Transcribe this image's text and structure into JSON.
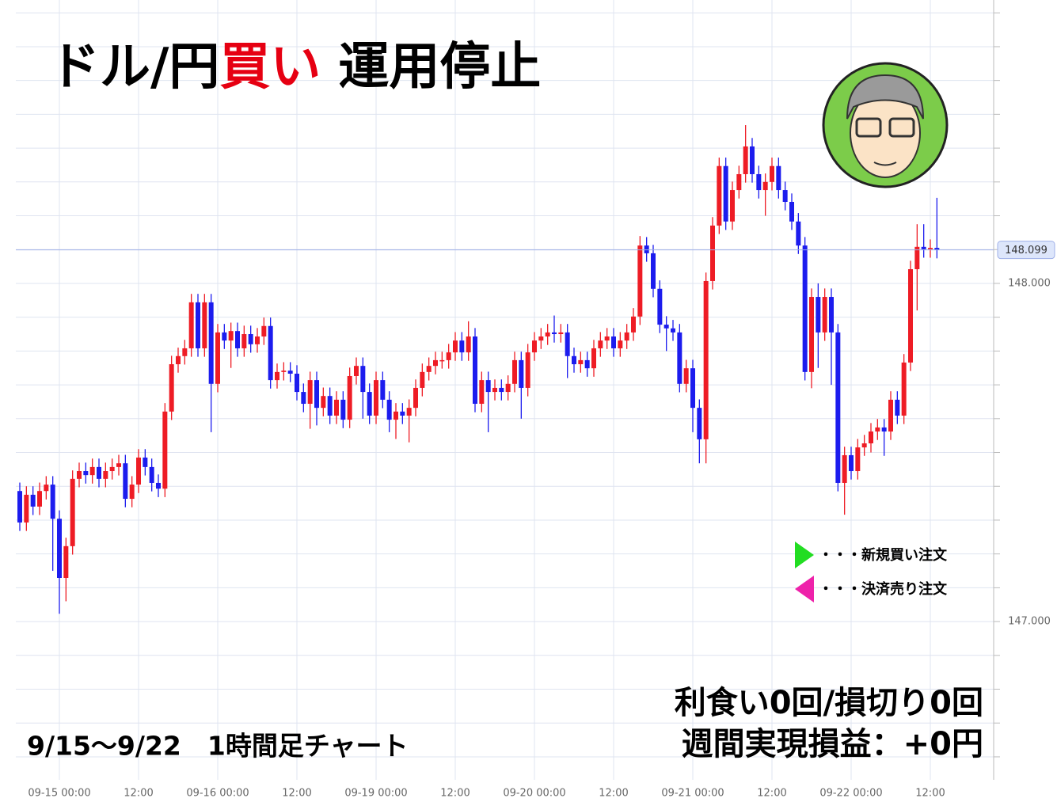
{
  "chart_data": {
    "type": "candlestick",
    "title_parts": [
      "ドル/円",
      "買い",
      "運用停止"
    ],
    "title_colors": [
      "#000000",
      "#e60012",
      "#000000"
    ],
    "subtitle": "9/15～9/22　1時間足チャート",
    "result_lines": [
      "利食い0回/損切り0回",
      "週間実現損益：+0円"
    ],
    "legend": [
      {
        "name": "・・・新規買い注文",
        "color": "#22dd22"
      },
      {
        "name": "・・・決済売り注文",
        "color": "#ee22aa"
      }
    ],
    "up_color": "#ee1c25",
    "down_color": "#1c1cee",
    "categories": [
      null,
      null,
      null,
      null,
      null,
      null,
      "09-15 00:00",
      null,
      null,
      null,
      null,
      null,
      null,
      null,
      null,
      null,
      null,
      null,
      "12:00",
      null,
      null,
      null,
      null,
      null,
      null,
      null,
      null,
      null,
      null,
      null,
      "09-16 00:00",
      null,
      null,
      null,
      null,
      null,
      null,
      null,
      null,
      null,
      null,
      null,
      "12:00",
      null,
      null,
      null,
      null,
      null,
      null,
      null,
      null,
      null,
      null,
      null,
      "09-19 00:00",
      null,
      null,
      null,
      null,
      null,
      null,
      null,
      null,
      null,
      null,
      null,
      "12:00",
      null,
      null,
      null,
      null,
      null,
      null,
      null,
      null,
      null,
      null,
      null,
      "09-20 00:00",
      null,
      null,
      null,
      null,
      null,
      null,
      null,
      null,
      null,
      null,
      null,
      "12:00",
      null,
      null,
      null,
      null,
      null,
      null,
      null,
      null,
      null,
      null,
      null,
      "09-21 00:00",
      null,
      null,
      null,
      null,
      null,
      null,
      null,
      null,
      null,
      null,
      null,
      "12:00",
      null,
      null,
      null,
      null,
      null,
      null,
      null,
      null,
      null,
      null,
      null,
      "09-22 00:00",
      null,
      null,
      null,
      null,
      null,
      null,
      null,
      null,
      null,
      null,
      null,
      "12:00",
      null
    ],
    "open": [
      147.386,
      147.293,
      147.375,
      147.34,
      147.386,
      147.405,
      147.304,
      147.129,
      147.223,
      147.422,
      147.445,
      147.433,
      147.457,
      147.422,
      147.445,
      147.457,
      147.468,
      147.363,
      147.405,
      147.485,
      147.457,
      147.41,
      147.393,
      147.621,
      147.761,
      147.785,
      147.808,
      147.944,
      147.808,
      147.944,
      147.703,
      147.855,
      147.831,
      147.859,
      147.808,
      147.85,
      147.82,
      147.843,
      147.874,
      147.714,
      147.738,
      147.742,
      147.733,
      147.679,
      147.644,
      147.714,
      147.632,
      147.667,
      147.609,
      147.656,
      147.597,
      147.726,
      147.756,
      147.679,
      147.609,
      147.714,
      147.656,
      147.597,
      147.621,
      147.609,
      147.632,
      147.691,
      147.738,
      147.756,
      147.773,
      147.773,
      147.796,
      147.831,
      147.796,
      147.843,
      147.644,
      147.714,
      147.679,
      147.691,
      147.679,
      147.703,
      147.773,
      147.691,
      147.796,
      147.831,
      147.843,
      147.855,
      147.85,
      147.855,
      147.785,
      147.761,
      147.773,
      147.749,
      147.808,
      147.831,
      147.843,
      147.808,
      147.831,
      147.855,
      147.902,
      148.112,
      148.089,
      147.984,
      147.878,
      147.867,
      147.855,
      147.703,
      147.749,
      147.632,
      147.539,
      148.007,
      148.171,
      148.347,
      148.183,
      148.276,
      148.323,
      148.405,
      148.323,
      148.276,
      148.3,
      148.347,
      148.276,
      148.241,
      148.183,
      148.112,
      147.738,
      147.96,
      147.855,
      147.96,
      147.855,
      147.41,
      147.492,
      147.445,
      147.515,
      147.527,
      147.562,
      147.574,
      147.562,
      147.656,
      147.609,
      147.766,
      148.042,
      148.108,
      148.101,
      148.105
    ],
    "high": [
      147.411,
      147.4,
      147.4,
      147.411,
      147.43,
      147.43,
      147.329,
      147.248,
      147.447,
      147.47,
      147.47,
      147.482,
      147.482,
      147.47,
      147.482,
      147.493,
      147.493,
      147.43,
      147.51,
      147.51,
      147.482,
      147.435,
      147.646,
      147.786,
      147.81,
      147.833,
      147.969,
      147.969,
      147.969,
      147.969,
      147.88,
      147.88,
      147.884,
      147.884,
      147.875,
      147.875,
      147.868,
      147.899,
      147.899,
      147.763,
      147.767,
      147.767,
      147.758,
      147.704,
      147.739,
      147.739,
      147.692,
      147.692,
      147.681,
      147.681,
      147.751,
      147.781,
      147.781,
      147.704,
      147.739,
      147.739,
      147.681,
      147.646,
      147.646,
      147.657,
      147.716,
      147.763,
      147.781,
      147.798,
      147.798,
      147.821,
      147.856,
      147.856,
      147.888,
      147.868,
      147.739,
      147.739,
      147.716,
      147.716,
      147.728,
      147.798,
      147.798,
      147.821,
      147.856,
      147.868,
      147.88,
      147.905,
      147.88,
      147.88,
      147.81,
      147.798,
      147.798,
      147.833,
      147.856,
      147.868,
      147.868,
      147.856,
      147.88,
      147.927,
      148.14,
      148.137,
      148.114,
      148.009,
      147.903,
      147.892,
      147.88,
      147.774,
      147.774,
      147.657,
      148.032,
      148.196,
      148.372,
      148.372,
      148.301,
      148.348,
      148.468,
      148.43,
      148.348,
      148.325,
      148.372,
      148.372,
      148.301,
      148.266,
      148.208,
      148.137,
      147.985,
      148.0,
      147.985,
      147.985,
      147.88,
      147.517,
      147.517,
      147.54,
      147.552,
      147.587,
      147.599,
      147.599,
      147.681,
      147.681,
      147.791,
      148.067,
      148.175,
      148.175,
      148.13,
      148.253
    ],
    "low": [
      147.268,
      147.268,
      147.315,
      147.315,
      147.361,
      147.15,
      147.023,
      147.06,
      147.198,
      147.397,
      147.408,
      147.408,
      147.397,
      147.397,
      147.42,
      147.432,
      147.338,
      147.338,
      147.38,
      147.432,
      147.385,
      147.368,
      147.368,
      147.596,
      147.736,
      147.76,
      147.783,
      147.783,
      147.783,
      147.56,
      147.678,
      147.806,
      147.75,
      147.783,
      147.783,
      147.795,
      147.795,
      147.818,
      147.689,
      147.689,
      147.713,
      147.708,
      147.654,
      147.619,
      147.57,
      147.58,
      147.607,
      147.584,
      147.584,
      147.572,
      147.572,
      147.701,
      147.6,
      147.584,
      147.584,
      147.631,
      147.56,
      147.54,
      147.584,
      147.53,
      147.607,
      147.666,
      147.713,
      147.731,
      147.748,
      147.748,
      147.771,
      147.771,
      147.771,
      147.619,
      147.619,
      147.56,
      147.654,
      147.654,
      147.654,
      147.678,
      147.6,
      147.666,
      147.771,
      147.806,
      147.818,
      147.825,
      147.825,
      147.72,
      147.736,
      147.736,
      147.724,
      147.724,
      147.783,
      147.806,
      147.783,
      147.783,
      147.806,
      147.83,
      147.877,
      148.064,
      147.959,
      147.853,
      147.8,
      147.83,
      147.678,
      147.678,
      147.56,
      147.468,
      147.468,
      147.982,
      148.146,
      148.158,
      148.158,
      148.251,
      148.298,
      148.298,
      148.251,
      148.2,
      148.275,
      148.251,
      148.216,
      148.158,
      148.087,
      147.713,
      147.69,
      147.75,
      147.83,
      147.7,
      147.385,
      147.316,
      147.42,
      147.42,
      147.49,
      147.5,
      147.537,
      147.49,
      147.537,
      147.584,
      147.584,
      147.741,
      147.92,
      148.076,
      148.076,
      148.074
    ],
    "close": [
      147.293,
      147.375,
      147.34,
      147.386,
      147.405,
      147.304,
      147.129,
      147.223,
      147.422,
      147.445,
      147.433,
      147.457,
      147.422,
      147.445,
      147.457,
      147.468,
      147.363,
      147.405,
      147.485,
      147.457,
      147.41,
      147.393,
      147.621,
      147.761,
      147.785,
      147.808,
      147.944,
      147.808,
      147.944,
      147.703,
      147.855,
      147.831,
      147.859,
      147.808,
      147.85,
      147.82,
      147.843,
      147.874,
      147.714,
      147.738,
      147.742,
      147.733,
      147.679,
      147.644,
      147.714,
      147.632,
      147.667,
      147.609,
      147.656,
      147.597,
      147.726,
      147.756,
      147.679,
      147.609,
      147.714,
      147.656,
      147.597,
      147.621,
      147.609,
      147.632,
      147.691,
      147.738,
      147.756,
      147.773,
      147.773,
      147.796,
      147.831,
      147.796,
      147.843,
      147.644,
      147.714,
      147.679,
      147.691,
      147.679,
      147.703,
      147.773,
      147.691,
      147.796,
      147.831,
      147.843,
      147.855,
      147.85,
      147.855,
      147.785,
      147.761,
      147.773,
      147.749,
      147.808,
      147.831,
      147.843,
      147.808,
      147.831,
      147.855,
      147.902,
      148.112,
      148.089,
      147.984,
      147.878,
      147.867,
      147.855,
      147.703,
      147.749,
      147.632,
      147.539,
      148.007,
      148.171,
      148.347,
      148.183,
      148.276,
      148.323,
      148.405,
      148.323,
      148.276,
      148.3,
      148.347,
      148.276,
      148.241,
      148.183,
      148.112,
      147.738,
      147.96,
      147.855,
      147.96,
      147.855,
      147.41,
      147.492,
      147.445,
      147.515,
      147.527,
      147.562,
      147.574,
      147.562,
      147.656,
      147.609,
      147.766,
      148.042,
      148.108,
      148.101,
      148.105,
      148.099
    ],
    "ylim": [
      146.532,
      148.838
    ],
    "yticks": [
      {
        "value": 148,
        "label": "148.000"
      },
      {
        "value": 147,
        "label": "147.000"
      }
    ],
    "ygrid": [
      146.6,
      146.7,
      146.8,
      146.9,
      147.0,
      147.1,
      147.2,
      147.3,
      147.4,
      147.5,
      147.6,
      147.7,
      147.8,
      147.9,
      148.0,
      148.1,
      148.2,
      148.3,
      148.4,
      148.5,
      148.6,
      148.7,
      148.8
    ],
    "last_price": 148.099,
    "grid": true
  }
}
